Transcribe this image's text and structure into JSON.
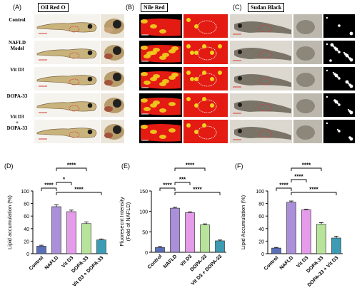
{
  "panels_top": [
    {
      "letter": "(A)",
      "stain": "Oil Red O"
    },
    {
      "letter": "(B)",
      "stain": "Nile Red"
    },
    {
      "letter": "(C)",
      "stain": "Sudan Black"
    }
  ],
  "groups": [
    "Control",
    "NAFLD Model",
    "Vit D3",
    "DOPA-33",
    "Vit D3 + DOPA-33"
  ],
  "row_labels": [
    {
      "lines": [
        "Control"
      ]
    },
    {
      "lines": [
        "NAFLD",
        "Model"
      ]
    },
    {
      "lines": [
        "Vit D3"
      ]
    },
    {
      "lines": [
        "DOPA-33"
      ]
    },
    {
      "lines": [
        "Vit D3",
        "+",
        "DOPA-33"
      ]
    }
  ],
  "colors": {
    "control": "#5b6fb8",
    "nafld": "#a990d8",
    "vitd3": "#e49bea",
    "dopa33": "#b7e49a",
    "combo": "#3d9bb4",
    "scale_bar": "#d83a3a",
    "nile_red": "#e31b12",
    "nile_yellow": "#f0d21e"
  },
  "chart_data": [
    {
      "panel": "(D)",
      "type": "bar",
      "categories": [
        "Control",
        "NAFLD",
        "Vit D3",
        "DOPA-33",
        "Vit D3 + DOPA-33"
      ],
      "values": [
        12,
        75,
        67,
        48,
        22
      ],
      "errors": [
        1.5,
        3,
        2.5,
        2.5,
        1.5
      ],
      "ylabel": "Lipid accumulation (%)",
      "ylim": [
        0,
        100
      ],
      "yticks": [
        0,
        20,
        40,
        60,
        80,
        100
      ],
      "significance": [
        {
          "from": 0,
          "to": 1,
          "text": "****"
        },
        {
          "from": 1,
          "to": 2,
          "text": "*"
        },
        {
          "from": 1,
          "to": 3,
          "text": "****"
        },
        {
          "from": 1,
          "to": 4,
          "text": "****"
        }
      ]
    },
    {
      "panel": "(E)",
      "type": "bar",
      "categories": [
        "Control",
        "NAFLD",
        "Vit D3",
        "DOPA-33",
        "Vit D3 + DOPA-33"
      ],
      "values": [
        12,
        108,
        97,
        67,
        28
      ],
      "errors": [
        2,
        2,
        2,
        2.5,
        2
      ],
      "ylabel": "Fluoresecnt Intensity (Fold of NAFLD)",
      "ylabel_lines": [
        "Fluoresecnt Intensity",
        "(Fold of NAFLD)"
      ],
      "ylim": [
        0,
        150
      ],
      "yticks": [
        0,
        50,
        100,
        150
      ],
      "significance": [
        {
          "from": 0,
          "to": 1,
          "text": "****"
        },
        {
          "from": 1,
          "to": 2,
          "text": "***"
        },
        {
          "from": 1,
          "to": 3,
          "text": "****"
        },
        {
          "from": 1,
          "to": 4,
          "text": "****"
        }
      ]
    },
    {
      "panel": "(F)",
      "type": "bar",
      "categories": [
        "Control",
        "NAFLD",
        "Vit D3",
        "DOPA-33",
        "DOPA-33 + Vit D3"
      ],
      "values": [
        9,
        82,
        70,
        47,
        25
      ],
      "errors": [
        1,
        2,
        1,
        2.5,
        3
      ],
      "ylabel": "Lipid Accumulation (%)",
      "ylim": [
        0,
        100
      ],
      "yticks": [
        0,
        20,
        40,
        60,
        80,
        100
      ],
      "significance": [
        {
          "from": 0,
          "to": 1,
          "text": "****"
        },
        {
          "from": 1,
          "to": 2,
          "text": "****"
        },
        {
          "from": 1,
          "to": 3,
          "text": "****"
        },
        {
          "from": 1,
          "to": 4,
          "text": "****"
        }
      ]
    }
  ]
}
